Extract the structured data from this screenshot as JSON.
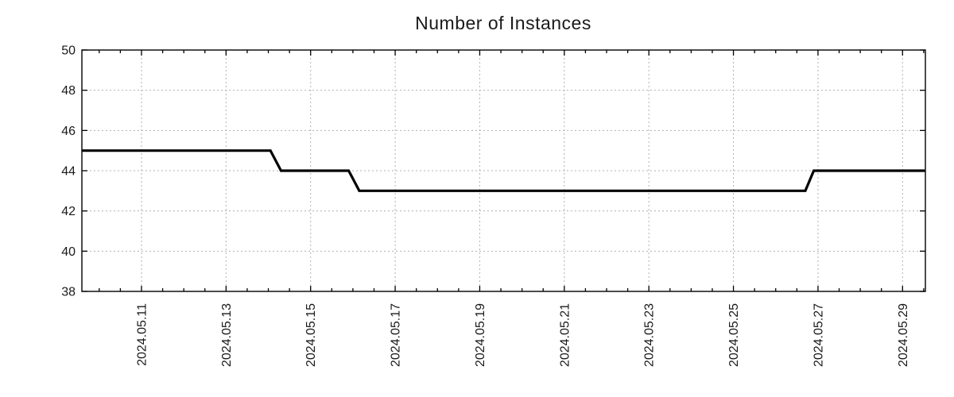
{
  "chart_data": {
    "type": "line",
    "title": "Number of Instances",
    "xlabel": "",
    "ylabel": "",
    "grid": true,
    "legend": "none",
    "ylim": [
      38,
      50
    ],
    "y_ticks": [
      38,
      40,
      42,
      44,
      46,
      48,
      50
    ],
    "xlim_days": [
      9.59,
      29.54
    ],
    "x_minor_step_days": 0.5,
    "x_ticks": [
      {
        "day": 11,
        "label": "2024.05.11"
      },
      {
        "day": 13,
        "label": "2024.05.13"
      },
      {
        "day": 15,
        "label": "2024.05.15"
      },
      {
        "day": 17,
        "label": "2024.05.17"
      },
      {
        "day": 19,
        "label": "2024.05.19"
      },
      {
        "day": 21,
        "label": "2024.05.21"
      },
      {
        "day": 23,
        "label": "2024.05.23"
      },
      {
        "day": 25,
        "label": "2024.05.25"
      },
      {
        "day": 27,
        "label": "2024.05.27"
      },
      {
        "day": 29,
        "label": "2024.05.29"
      }
    ],
    "series": [
      {
        "name": "instances",
        "points": [
          {
            "day": 9.59,
            "value": 45
          },
          {
            "day": 14.05,
            "value": 45
          },
          {
            "day": 14.3,
            "value": 44
          },
          {
            "day": 15.9,
            "value": 44
          },
          {
            "day": 16.15,
            "value": 43
          },
          {
            "day": 26.7,
            "value": 43
          },
          {
            "day": 26.9,
            "value": 44
          },
          {
            "day": 29.54,
            "value": 44
          }
        ]
      }
    ],
    "steps_summary": [
      {
        "from": "2024.05.09",
        "to": "2024.05.14",
        "value": 45
      },
      {
        "from": "2024.05.14",
        "to": "2024.05.16",
        "value": 44
      },
      {
        "from": "2024.05.16",
        "to": "2024.05.27",
        "value": 43
      },
      {
        "from": "2024.05.27",
        "to": "2024.05.29",
        "value": 44
      }
    ],
    "colors": {
      "line": "#000000",
      "grid": "#b0b0b0",
      "axis": "#000000",
      "text": "#1a1a1a",
      "background": "#ffffff"
    }
  }
}
